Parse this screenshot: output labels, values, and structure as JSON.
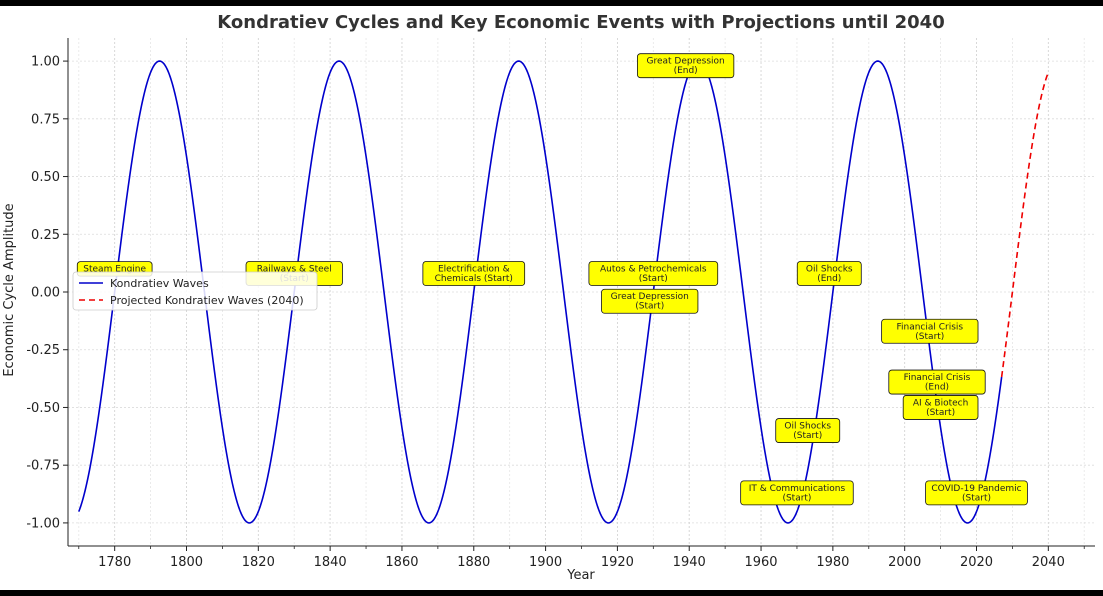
{
  "chart_data": {
    "type": "line",
    "title": "Kondratiev Cycles and Key Economic Events with Projections until 2040",
    "xlabel": "Year",
    "ylabel": "Economic Cycle Amplitude",
    "xlim": [
      1767,
      2053
    ],
    "ylim": [
      -1.1,
      1.1
    ],
    "xticks": [
      1780,
      1800,
      1820,
      1840,
      1860,
      1880,
      1900,
      1920,
      1940,
      1960,
      1980,
      2000,
      2020,
      2040
    ],
    "yticks": [
      1.0,
      0.75,
      0.5,
      0.25,
      0.0,
      -0.25,
      -0.5,
      -0.75,
      -1.0
    ],
    "grid": true,
    "legend_position": "center-left",
    "series": [
      {
        "name": "Kondratiev Waves",
        "color": "#0000cc",
        "style": "solid",
        "x_range": [
          1770,
          2027
        ],
        "function": "sine",
        "period": 50,
        "peak_year": 1792.5
      },
      {
        "name": "Projected Kondratiev Waves (2040)",
        "color": "#ee0000",
        "style": "dashed",
        "x_range": [
          2027,
          2040
        ],
        "function": "sine",
        "period": 50,
        "peak_year": 1792.5
      }
    ],
    "annotations": [
      {
        "text": "Steam Engine",
        "x": 1780,
        "y": 0.1
      },
      {
        "text": "Railways & Steel\n(Start)",
        "x": 1830,
        "y": 0.08
      },
      {
        "text": "Electrification &\nChemicals (Start)",
        "x": 1880,
        "y": 0.08
      },
      {
        "text": "Autos & Petrochemicals\n(Start)",
        "x": 1930,
        "y": 0.08
      },
      {
        "text": "Great Depression\n(Start)",
        "x": 1929,
        "y": -0.04
      },
      {
        "text": "Great Depression\n(End)",
        "x": 1939,
        "y": 0.98
      },
      {
        "text": "IT & Communications\n(Start)",
        "x": 1970,
        "y": -0.87
      },
      {
        "text": "Oil Shocks\n(Start)",
        "x": 1973,
        "y": -0.6
      },
      {
        "text": "Oil Shocks\n(End)",
        "x": 1979,
        "y": 0.08
      },
      {
        "text": "Financial Crisis\n(Start)",
        "x": 2007,
        "y": -0.17
      },
      {
        "text": "Financial Crisis\n(End)",
        "x": 2009,
        "y": -0.39
      },
      {
        "text": "AI & Biotech\n(Start)",
        "x": 2010,
        "y": -0.5
      },
      {
        "text": "COVID-19 Pandemic\n(Start)",
        "x": 2020,
        "y": -0.87
      }
    ]
  }
}
